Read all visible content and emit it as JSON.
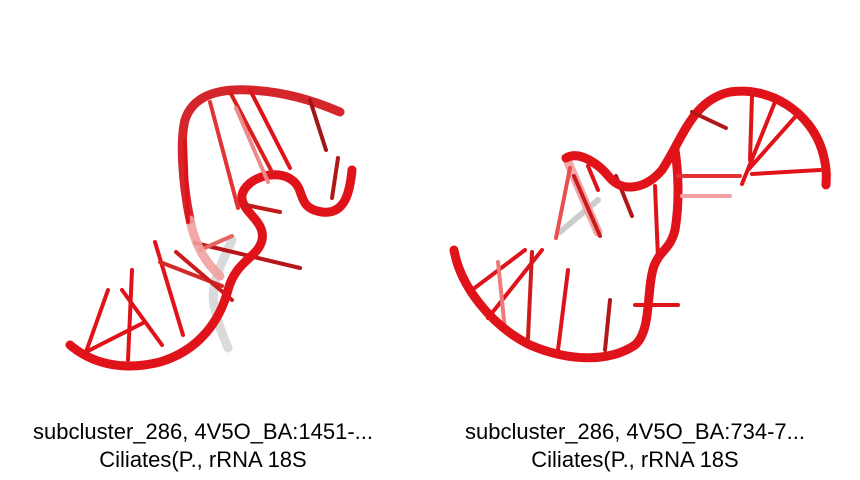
{
  "colors": {
    "backbone": "#e0131a",
    "base": "#e0131a",
    "faded": "#cccccc"
  },
  "panels": [
    {
      "caption_line1": "subcluster_286, 4V5O_BA:1451-...",
      "caption_line2": "Ciliates(P., rRNA 18S"
    },
    {
      "caption_line1": "subcluster_286, 4V5O_BA:734-7...",
      "caption_line2": "Ciliates(P., rRNA 18S"
    }
  ]
}
